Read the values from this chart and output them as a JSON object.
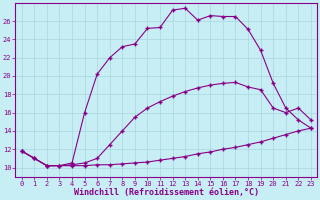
{
  "xlabel": "Windchill (Refroidissement éolien,°C)",
  "bg_color": "#c8eef5",
  "line_color": "#880088",
  "grid_color": "#a8d8e0",
  "xlim": [
    -0.5,
    23.5
  ],
  "ylim": [
    9.0,
    28.0
  ],
  "xticks": [
    0,
    1,
    2,
    3,
    4,
    5,
    6,
    7,
    8,
    9,
    10,
    11,
    12,
    13,
    14,
    15,
    16,
    17,
    18,
    19,
    20,
    21,
    22,
    23
  ],
  "yticks": [
    10,
    12,
    14,
    16,
    18,
    20,
    22,
    24,
    26
  ],
  "line1_x": [
    0,
    1,
    2,
    3,
    4,
    5,
    6,
    7,
    8,
    9,
    10,
    11,
    12,
    13,
    14,
    15,
    16,
    17,
    18,
    19,
    20,
    21,
    22,
    23
  ],
  "line1_y": [
    11.8,
    11.0,
    10.2,
    10.2,
    10.2,
    10.2,
    10.3,
    10.3,
    10.4,
    10.5,
    10.6,
    10.8,
    11.0,
    11.2,
    11.5,
    11.7,
    12.0,
    12.2,
    12.5,
    12.8,
    13.2,
    13.6,
    14.0,
    14.3
  ],
  "line2_x": [
    0,
    1,
    2,
    3,
    4,
    5,
    6,
    7,
    8,
    9,
    10,
    11,
    12,
    13,
    14,
    15,
    16,
    17,
    18,
    19,
    20,
    21,
    22,
    23
  ],
  "line2_y": [
    11.8,
    11.0,
    10.2,
    10.2,
    10.3,
    10.5,
    11.0,
    12.5,
    14.0,
    15.5,
    16.5,
    17.2,
    17.8,
    18.3,
    18.7,
    19.0,
    19.2,
    19.3,
    18.8,
    18.5,
    16.5,
    16.0,
    16.5,
    15.2
  ],
  "line3_x": [
    0,
    1,
    2,
    3,
    4,
    5,
    6,
    7,
    8,
    9,
    10,
    11,
    12,
    13,
    14,
    15,
    16,
    17,
    18,
    19,
    20,
    21,
    22,
    23
  ],
  "line3_y": [
    11.8,
    11.0,
    10.2,
    10.2,
    10.5,
    16.0,
    20.2,
    22.0,
    23.2,
    23.5,
    25.2,
    25.3,
    27.2,
    27.4,
    26.1,
    26.6,
    26.5,
    26.5,
    25.1,
    22.8,
    19.2,
    16.5,
    15.2,
    14.3
  ],
  "marker": "+",
  "markersize": 3.5,
  "linewidth": 0.8,
  "tick_fontsize": 5.0,
  "label_fontsize": 6.0
}
